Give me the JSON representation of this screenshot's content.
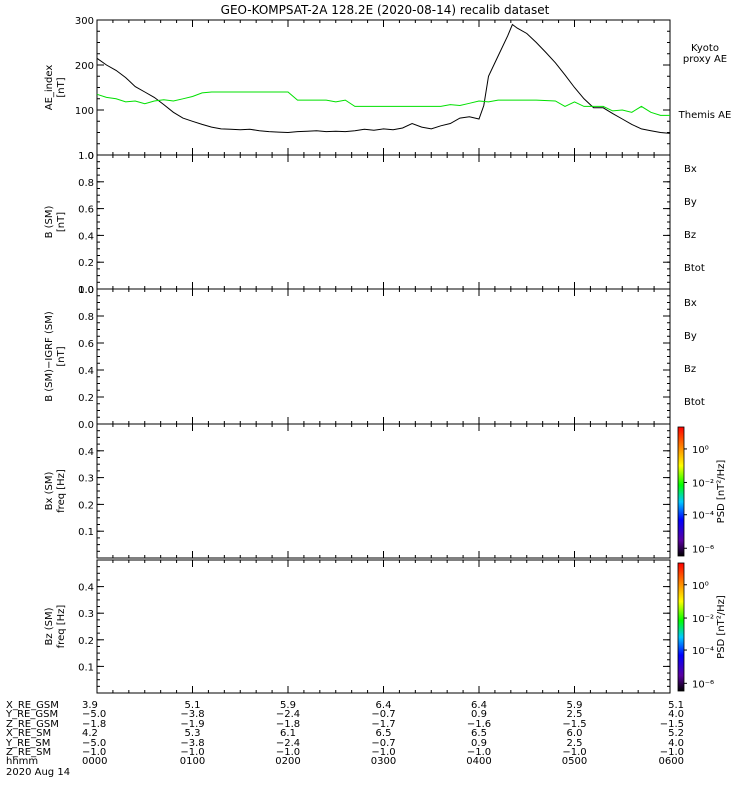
{
  "title": "GEO-KOMPSAT-2A 128.2E (2020-08-14) recalib dataset",
  "panels": [
    {
      "id": "ae",
      "ylabel_lines": [
        "AE_index",
        "[nT]"
      ],
      "yticks": [
        "0",
        "100",
        "200",
        "300"
      ],
      "legend": [
        {
          "text": "Kyoto",
          "color": "#00e000"
        },
        {
          "text": "proxy AE",
          "color": "#00e000"
        },
        {
          "text": "Themis AE",
          "color": "#000000"
        }
      ]
    },
    {
      "id": "bsm",
      "ylabel_lines": [
        "B (SM)",
        "[nT]"
      ],
      "yticks": [
        "0.0",
        "0.2",
        "0.4",
        "0.6",
        "0.8",
        "1.0"
      ],
      "legend": [
        {
          "text": "Bx",
          "color": "#0000cc"
        },
        {
          "text": "By",
          "color": "#00cc00"
        },
        {
          "text": "Bz",
          "color": "#cc0000"
        },
        {
          "text": "Btot",
          "color": "#000000"
        }
      ]
    },
    {
      "id": "bsmigrf",
      "ylabel_lines": [
        "B (SM)−IGRF (SM)",
        "[nT]"
      ],
      "yticks": [
        "0.0",
        "0.2",
        "0.4",
        "0.6",
        "0.8",
        "1.0"
      ],
      "legend": [
        {
          "text": "Bx",
          "color": "#0000cc"
        },
        {
          "text": "By",
          "color": "#00cc00"
        },
        {
          "text": "Bz",
          "color": "#cc0000"
        },
        {
          "text": "Btot",
          "color": "#000000"
        }
      ]
    },
    {
      "id": "bxfreq",
      "ylabel_lines": [
        "Bx (SM)",
        "freq [Hz]"
      ],
      "yticks": [
        "0.1",
        "0.2",
        "0.3",
        "0.4"
      ],
      "colorbar": {
        "ticks": [
          "10⁰",
          "10⁻²",
          "10⁻⁴",
          "10⁻⁶"
        ],
        "label": "PSD [nT²/Hz]"
      }
    },
    {
      "id": "bzfreq",
      "ylabel_lines": [
        "Bz (SM)",
        "freq [Hz]"
      ],
      "yticks": [
        "0.1",
        "0.2",
        "0.3",
        "0.4"
      ],
      "colorbar": {
        "ticks": [
          "10⁰",
          "10⁻²",
          "10⁻⁴",
          "10⁻⁶"
        ],
        "label": "PSD [nT²/Hz]"
      }
    }
  ],
  "chart_data": {
    "type": "line",
    "title": "GEO-KOMPSAT-2A 128.2E (2020-08-14) recalib dataset",
    "x_unit": "hours UT",
    "xlim": [
      0,
      6
    ],
    "ylim": [
      0,
      300
    ],
    "series": [
      {
        "name": "Themis AE",
        "color": "#000000",
        "x": [
          0,
          0.1,
          0.2,
          0.3,
          0.4,
          0.5,
          0.6,
          0.7,
          0.8,
          0.9,
          1.0,
          1.1,
          1.2,
          1.3,
          1.4,
          1.5,
          1.6,
          1.7,
          1.8,
          1.9,
          2.0,
          2.1,
          2.2,
          2.3,
          2.4,
          2.5,
          2.6,
          2.7,
          2.8,
          2.9,
          3.0,
          3.1,
          3.2,
          3.3,
          3.4,
          3.5,
          3.6,
          3.7,
          3.8,
          3.9,
          4.0,
          4.05,
          4.1,
          4.2,
          4.3,
          4.35,
          4.4,
          4.5,
          4.6,
          4.7,
          4.8,
          4.9,
          5.0,
          5.1,
          5.2,
          5.3,
          5.4,
          5.5,
          5.6,
          5.7,
          5.8,
          5.9,
          6.0
        ],
        "y": [
          215,
          200,
          188,
          172,
          152,
          140,
          128,
          112,
          95,
          82,
          75,
          68,
          62,
          58,
          57,
          56,
          57,
          54,
          52,
          51,
          50,
          52,
          53,
          54,
          52,
          53,
          52,
          54,
          57,
          55,
          58,
          56,
          60,
          70,
          62,
          58,
          65,
          70,
          82,
          85,
          80,
          110,
          175,
          220,
          265,
          290,
          282,
          270,
          250,
          228,
          205,
          178,
          150,
          125,
          105,
          105,
          92,
          80,
          68,
          58,
          54,
          50,
          48
        ]
      },
      {
        "name": "Kyoto proxy AE",
        "color": "#00e000",
        "x": [
          0,
          0.1,
          0.2,
          0.3,
          0.4,
          0.5,
          0.6,
          0.7,
          0.8,
          0.9,
          1.0,
          1.1,
          1.2,
          1.5,
          1.8,
          2.0,
          2.1,
          2.4,
          2.5,
          2.6,
          2.7,
          3.0,
          3.2,
          3.4,
          3.6,
          3.7,
          3.8,
          3.9,
          4.0,
          4.1,
          4.2,
          4.3,
          4.4,
          4.6,
          4.8,
          4.9,
          5.0,
          5.1,
          5.2,
          5.3,
          5.4,
          5.5,
          5.6,
          5.7,
          5.8,
          5.9,
          6.0
        ],
        "y": [
          135,
          128,
          125,
          118,
          120,
          114,
          120,
          123,
          120,
          125,
          130,
          138,
          140,
          140,
          140,
          140,
          122,
          122,
          118,
          122,
          108,
          108,
          108,
          108,
          108,
          112,
          110,
          115,
          120,
          118,
          122,
          122,
          122,
          122,
          120,
          108,
          118,
          108,
          108,
          108,
          98,
          100,
          95,
          108,
          95,
          88,
          88
        ]
      }
    ]
  },
  "ephemeris": {
    "row_labels": [
      "X_RE_GSM",
      "Y_RE_GSM",
      "Z_RE_GSM",
      "X_RE_SM",
      "Y_RE_SM",
      "Z_RE_SM",
      "hhmm",
      "2020 Aug 14"
    ],
    "columns": [
      [
        "3.9",
        "−5.0",
        "−1.8",
        "4.2",
        "−5.0",
        "−1.0",
        "0000"
      ],
      [
        "5.1",
        "−3.8",
        "−1.9",
        "5.3",
        "−3.8",
        "−1.0",
        "0100"
      ],
      [
        "5.9",
        "−2.4",
        "−1.8",
        "6.1",
        "−2.4",
        "−1.0",
        "0200"
      ],
      [
        "6.4",
        "−0.7",
        "−1.7",
        "6.5",
        "−0.7",
        "−1.0",
        "0300"
      ],
      [
        "6.4",
        "0.9",
        "−1.6",
        "6.5",
        "0.9",
        "−1.0",
        "0400"
      ],
      [
        "5.9",
        "2.5",
        "−1.5",
        "6.0",
        "2.5",
        "−1.0",
        "0500"
      ],
      [
        "5.1",
        "4.0",
        "−1.5",
        "5.2",
        "4.0",
        "−1.0",
        "0600"
      ]
    ]
  }
}
